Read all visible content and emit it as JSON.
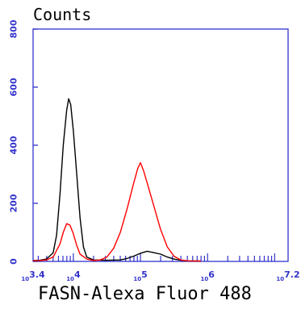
{
  "chart_data": {
    "type": "line",
    "ylabel": "Counts",
    "xlabel": "FASN-Alexa Fluor 488",
    "x_scale": "log",
    "xlim": [
      3.4,
      7.2
    ],
    "ylim": [
      0,
      800
    ],
    "y_ticks": [
      "0",
      "200",
      "400",
      "600",
      "800"
    ],
    "x_tick_labels": [
      {
        "base": "10",
        "exp": "3.4",
        "pos": 3.4
      },
      {
        "base": "10",
        "exp": "4",
        "pos": 4
      },
      {
        "base": "10",
        "exp": "5",
        "pos": 5
      },
      {
        "base": "10",
        "exp": "6",
        "pos": 6
      },
      {
        "base": "10",
        "exp": "7.2",
        "pos": 7.2
      }
    ],
    "colors": {
      "axis": "#3333cc",
      "tick_label": "#3333cc",
      "series_1": "#000000",
      "series_2": "#ff0000"
    },
    "series": [
      {
        "color": "#000000",
        "points": [
          [
            3.4,
            3
          ],
          [
            3.5,
            4
          ],
          [
            3.6,
            8
          ],
          [
            3.7,
            30
          ],
          [
            3.75,
            90
          ],
          [
            3.8,
            230
          ],
          [
            3.85,
            400
          ],
          [
            3.9,
            520
          ],
          [
            3.93,
            560
          ],
          [
            3.96,
            540
          ],
          [
            4.0,
            450
          ],
          [
            4.05,
            300
          ],
          [
            4.1,
            150
          ],
          [
            4.15,
            50
          ],
          [
            4.2,
            15
          ],
          [
            4.3,
            5
          ],
          [
            4.5,
            4
          ],
          [
            4.7,
            5
          ],
          [
            4.8,
            10
          ],
          [
            4.9,
            18
          ],
          [
            5.0,
            28
          ],
          [
            5.1,
            35
          ],
          [
            5.2,
            30
          ],
          [
            5.3,
            25
          ],
          [
            5.4,
            15
          ],
          [
            5.5,
            8
          ],
          [
            5.6,
            4
          ],
          [
            5.7,
            2
          ],
          [
            5.9,
            1
          ]
        ]
      },
      {
        "color": "#ff0000",
        "points": [
          [
            3.4,
            2
          ],
          [
            3.5,
            3
          ],
          [
            3.6,
            5
          ],
          [
            3.7,
            15
          ],
          [
            3.8,
            60
          ],
          [
            3.85,
            100
          ],
          [
            3.9,
            130
          ],
          [
            3.95,
            125
          ],
          [
            4.0,
            95
          ],
          [
            4.05,
            55
          ],
          [
            4.1,
            25
          ],
          [
            4.2,
            8
          ],
          [
            4.3,
            3
          ],
          [
            4.4,
            5
          ],
          [
            4.5,
            15
          ],
          [
            4.6,
            45
          ],
          [
            4.7,
            100
          ],
          [
            4.8,
            180
          ],
          [
            4.9,
            270
          ],
          [
            4.96,
            320
          ],
          [
            5.0,
            340
          ],
          [
            5.05,
            310
          ],
          [
            5.1,
            270
          ],
          [
            5.2,
            190
          ],
          [
            5.3,
            110
          ],
          [
            5.4,
            50
          ],
          [
            5.5,
            18
          ],
          [
            5.6,
            5
          ],
          [
            5.7,
            2
          ],
          [
            5.9,
            1
          ]
        ]
      }
    ]
  }
}
